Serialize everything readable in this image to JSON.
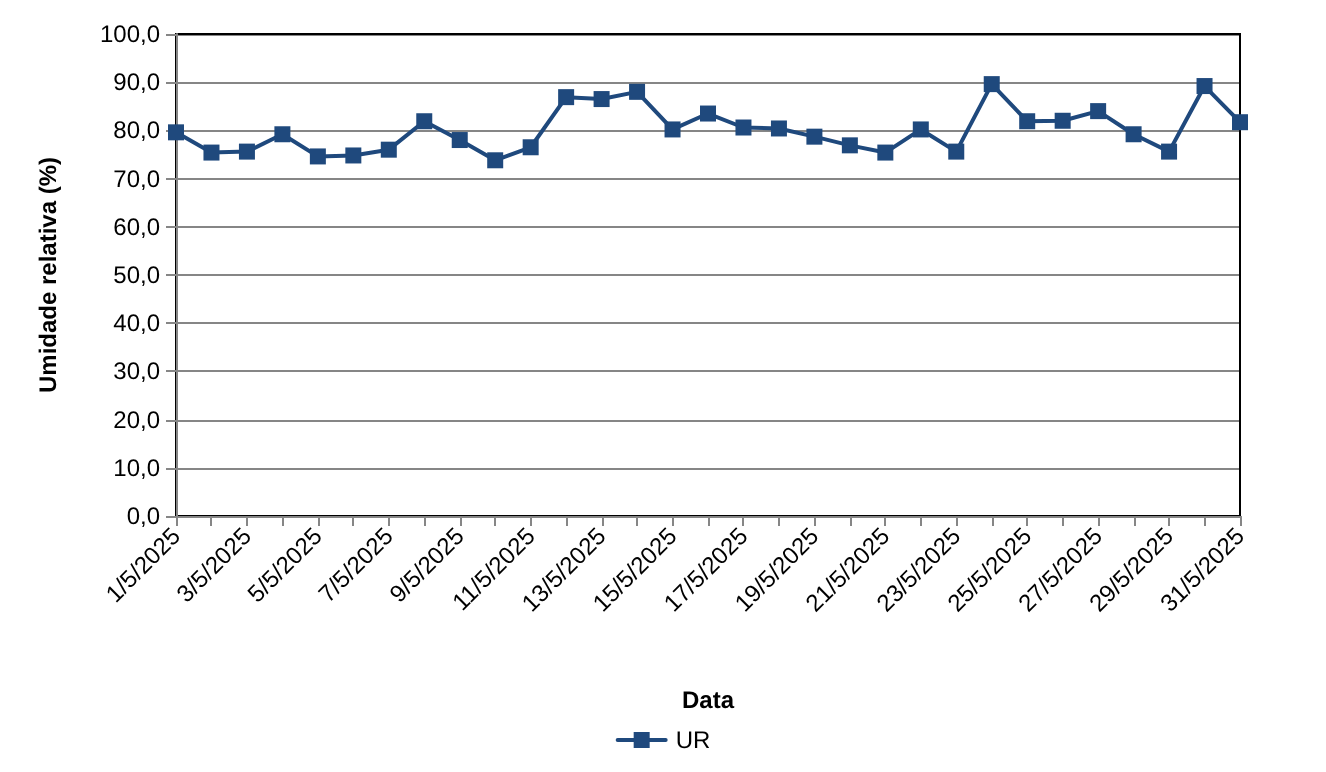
{
  "chart_data": {
    "type": "line",
    "xlabel": "Data",
    "ylabel": "Umidade relativa (%)",
    "categories": [
      "1/5/2025",
      null,
      "3/5/2025",
      null,
      "5/5/2025",
      null,
      "7/5/2025",
      null,
      "9/5/2025",
      null,
      "11/5/2025",
      null,
      "13/5/2025",
      null,
      "15/5/2025",
      null,
      "17/5/2025",
      null,
      "19/5/2025",
      null,
      "21/5/2025",
      null,
      "23/5/2025",
      null,
      "25/5/2025",
      null,
      "27/5/2025",
      null,
      "29/5/2025",
      null,
      "31/5/2025"
    ],
    "series": [
      {
        "name": "UR",
        "color": "#1f497d",
        "values": [
          79.6,
          75.4,
          75.6,
          79.2,
          74.6,
          74.8,
          76,
          81.9,
          78,
          73.8,
          76.5,
          86.9,
          86.5,
          88,
          80.2,
          83.5,
          80.6,
          80.4,
          78.7,
          76.9,
          75.4,
          80.2,
          75.6,
          89.6,
          81.9,
          82,
          84,
          79.2,
          75.6,
          89.2,
          81.7
        ]
      }
    ],
    "ylim": [
      0,
      100
    ],
    "yticks": [
      {
        "value": 0,
        "label": "0,0"
      },
      {
        "value": 10,
        "label": "10,0"
      },
      {
        "value": 20,
        "label": "20,0"
      },
      {
        "value": 30,
        "label": "30,0"
      },
      {
        "value": 40,
        "label": "40,0"
      },
      {
        "value": 50,
        "label": "50,0"
      },
      {
        "value": 60,
        "label": "60,0"
      },
      {
        "value": 70,
        "label": "70,0"
      },
      {
        "value": 80,
        "label": "80,0"
      },
      {
        "value": 90,
        "label": "90,0"
      },
      {
        "value": 100,
        "label": "100,0"
      }
    ],
    "grid": "y",
    "legend": "bottom",
    "marker": "square",
    "line_style": "solid"
  }
}
